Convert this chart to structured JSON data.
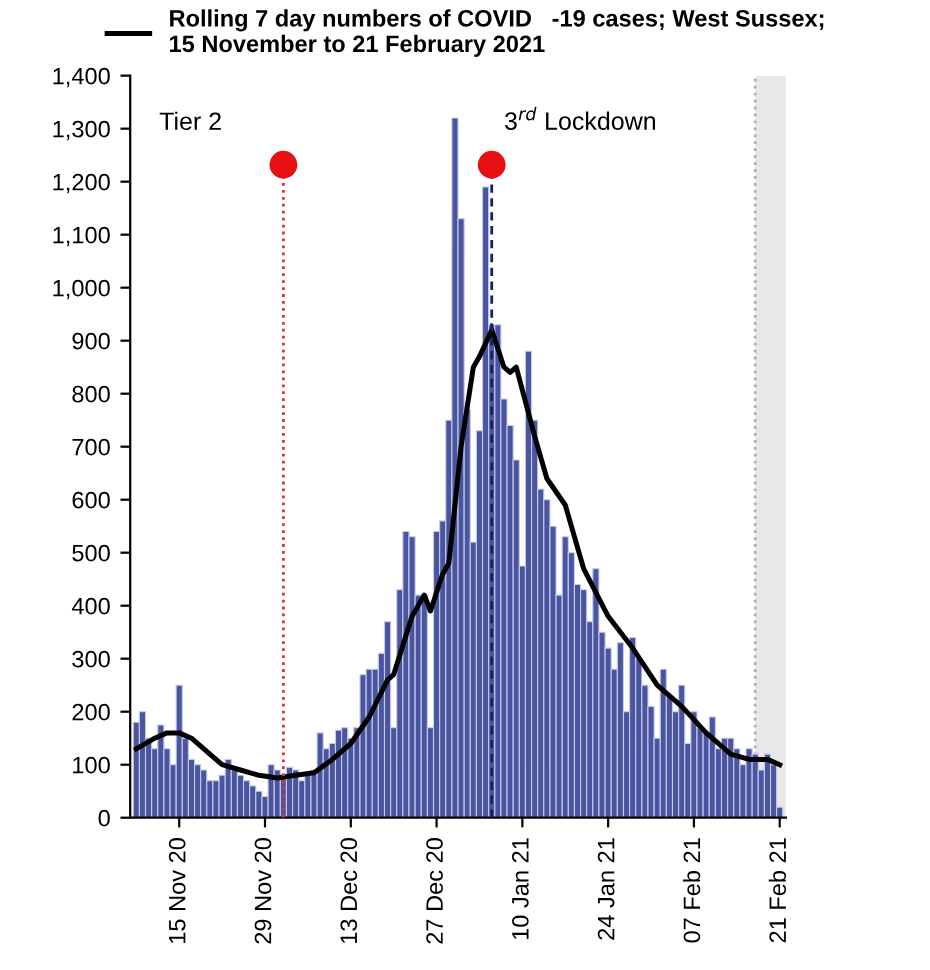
{
  "chart_data": {
    "type": "bar",
    "x": [
      "2020-11-08",
      "2020-11-09",
      "2020-11-10",
      "2020-11-11",
      "2020-11-12",
      "2020-11-13",
      "2020-11-14",
      "2020-11-15",
      "2020-11-16",
      "2020-11-17",
      "2020-11-18",
      "2020-11-19",
      "2020-11-20",
      "2020-11-21",
      "2020-11-22",
      "2020-11-23",
      "2020-11-24",
      "2020-11-25",
      "2020-11-26",
      "2020-11-27",
      "2020-11-28",
      "2020-11-29",
      "2020-11-30",
      "2020-12-01",
      "2020-12-02",
      "2020-12-03",
      "2020-12-04",
      "2020-12-05",
      "2020-12-06",
      "2020-12-07",
      "2020-12-08",
      "2020-12-09",
      "2020-12-10",
      "2020-12-11",
      "2020-12-12",
      "2020-12-13",
      "2020-12-14",
      "2020-12-15",
      "2020-12-16",
      "2020-12-17",
      "2020-12-18",
      "2020-12-19",
      "2020-12-20",
      "2020-12-21",
      "2020-12-22",
      "2020-12-23",
      "2020-12-24",
      "2020-12-25",
      "2020-12-26",
      "2020-12-27",
      "2020-12-28",
      "2020-12-29",
      "2020-12-30",
      "2020-12-31",
      "2021-01-01",
      "2021-01-02",
      "2021-01-03",
      "2021-01-04",
      "2021-01-05",
      "2021-01-06",
      "2021-01-07",
      "2021-01-08",
      "2021-01-09",
      "2021-01-10",
      "2021-01-11",
      "2021-01-12",
      "2021-01-13",
      "2021-01-14",
      "2021-01-15",
      "2021-01-16",
      "2021-01-17",
      "2021-01-18",
      "2021-01-19",
      "2021-01-20",
      "2021-01-21",
      "2021-01-22",
      "2021-01-23",
      "2021-01-24",
      "2021-01-25",
      "2021-01-26",
      "2021-01-27",
      "2021-01-28",
      "2021-01-29",
      "2021-01-30",
      "2021-01-31",
      "2021-02-01",
      "2021-02-02",
      "2021-02-03",
      "2021-02-04",
      "2021-02-05",
      "2021-02-06",
      "2021-02-07",
      "2021-02-08",
      "2021-02-09",
      "2021-02-10",
      "2021-02-11",
      "2021-02-12",
      "2021-02-13",
      "2021-02-14",
      "2021-02-15",
      "2021-02-16",
      "2021-02-17",
      "2021-02-18",
      "2021-02-19",
      "2021-02-20",
      "2021-02-21"
    ],
    "series": [
      {
        "color": "#4a55a2",
        "values": [
          180,
          200,
          150,
          130,
          175,
          130,
          100,
          250,
          150,
          110,
          100,
          90,
          70,
          70,
          80,
          110,
          90,
          80,
          70,
          60,
          50,
          40,
          100,
          90,
          80,
          95,
          90,
          70,
          80,
          90,
          160,
          130,
          140,
          165,
          170,
          150,
          170,
          270,
          280,
          280,
          310,
          370,
          170,
          430,
          540,
          530,
          420,
          420,
          170,
          540,
          560,
          750,
          1320,
          1130,
          770,
          520,
          730,
          1190,
          930,
          930,
          790,
          740,
          675,
          475,
          880,
          750,
          620,
          600,
          550,
          420,
          530,
          500,
          440,
          430,
          370,
          470,
          350,
          320,
          280,
          330,
          200,
          340,
          300,
          250,
          210,
          150,
          280,
          230,
          200,
          250,
          140,
          200,
          170,
          160,
          190,
          130,
          150,
          150,
          130,
          100,
          130,
          120,
          90,
          120,
          100,
          20
        ]
      },
      {
        "type": "line",
        "name": "Rolling 7 day numbers of COVID   -19 cases; West Sussex;\n15 November to 21 February 2021",
        "color": "#000000",
        "x": [
          "2020-11-08",
          "2020-11-11",
          "2020-11-13",
          "2020-11-15",
          "2020-11-17",
          "2020-11-20",
          "2020-11-22",
          "2020-11-25",
          "2020-11-28",
          "2020-12-01",
          "2020-12-04",
          "2020-12-07",
          "2020-12-10",
          "2020-12-13",
          "2020-12-16",
          "2020-12-19",
          "2020-12-20",
          "2020-12-23",
          "2020-12-25",
          "2020-12-26",
          "2020-12-28",
          "2020-12-29",
          "2020-12-31",
          "2021-01-02",
          "2021-01-03",
          "2021-01-05",
          "2021-01-07",
          "2021-01-08",
          "2021-01-09",
          "2021-01-12",
          "2021-01-14",
          "2021-01-17",
          "2021-01-20",
          "2021-01-24",
          "2021-01-28",
          "2021-02-01",
          "2021-02-05",
          "2021-02-09",
          "2021-02-13",
          "2021-02-16",
          "2021-02-19",
          "2021-02-21"
        ],
        "values": [
          130,
          150,
          160,
          160,
          150,
          120,
          100,
          90,
          80,
          75,
          80,
          85,
          110,
          140,
          190,
          260,
          270,
          380,
          420,
          390,
          460,
          480,
          700,
          850,
          870,
          920,
          850,
          840,
          850,
          720,
          640,
          590,
          470,
          380,
          320,
          250,
          210,
          160,
          120,
          110,
          110,
          100
        ]
      }
    ],
    "xlim": [
      "2020-11-07",
      "2021-02-22"
    ],
    "xticks": [
      {
        "value": "2020-11-15",
        "label": "15 Nov 20"
      },
      {
        "value": "2020-11-29",
        "label": "29 Nov 20"
      },
      {
        "value": "2020-12-13",
        "label": "13 Dec 20"
      },
      {
        "value": "2020-12-27",
        "label": "27 Dec 20"
      },
      {
        "value": "2021-01-10",
        "label": "10 Jan 21"
      },
      {
        "value": "2021-01-24",
        "label": "24 Jan 21"
      },
      {
        "value": "2021-02-07",
        "label": "07 Feb 21"
      },
      {
        "value": "2021-02-21",
        "label": "21 Feb 21"
      }
    ],
    "ylim": [
      0,
      1400
    ],
    "yticks": [
      0,
      100,
      200,
      300,
      400,
      500,
      600,
      700,
      800,
      900,
      {
        "value": 1000,
        "label": "1,000"
      },
      {
        "value": 1100,
        "label": "1,100"
      },
      {
        "value": 1200,
        "label": "1,200"
      },
      {
        "value": 1300,
        "label": "1,300"
      },
      {
        "value": 1400,
        "label": "1,400"
      }
    ],
    "ref_lines": [
      {
        "axis": "x",
        "value": "2020-12-02",
        "label": "Tier 2",
        "color": "#e03030",
        "line_style": "dotted"
      },
      {
        "axis": "x",
        "value": "2021-01-05",
        "label": "3$^{rd}$ Lockdown",
        "color": "#1a2060",
        "line_style": "dashed"
      },
      {
        "axis": "x",
        "value": "2021-02-17",
        "color": "#b0b0b0",
        "line_style": "dotted"
      }
    ],
    "bands": [
      {
        "axis": "x",
        "from": "2021-02-17",
        "to": "2021-02-22",
        "color": "#e8e8e8"
      }
    ],
    "legend": "top",
    "grid": false
  }
}
